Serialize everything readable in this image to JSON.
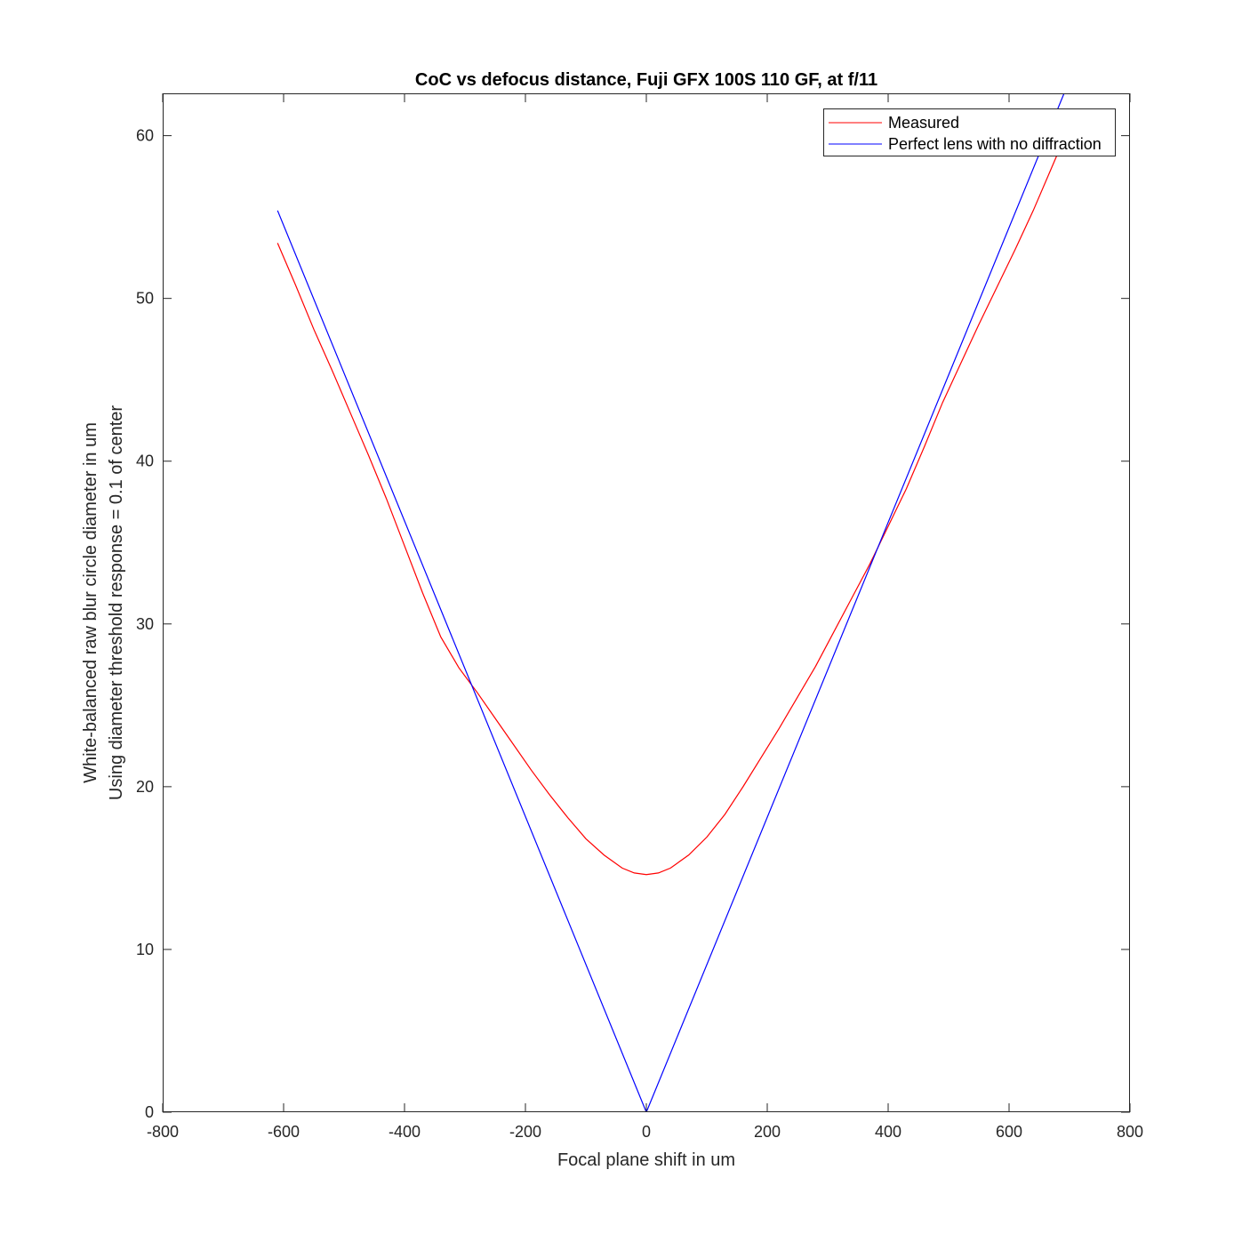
{
  "chart_data": {
    "type": "line",
    "title": "CoC vs defocus distance, Fuji GFX 100S 110 GF, at f/11",
    "xlabel": "Focal plane shift in um",
    "ylabel": [
      "White-balanced raw blur circle diameter in um",
      "Using diameter threshold response = 0.1 of center"
    ],
    "xlim": [
      -800,
      800
    ],
    "ylim": [
      0,
      62.6
    ],
    "xticks": [
      -800,
      -600,
      -400,
      -200,
      0,
      200,
      400,
      600,
      800
    ],
    "yticks": [
      0,
      10,
      20,
      30,
      40,
      50,
      60
    ],
    "grid": false,
    "legend_position": "top-right",
    "series": [
      {
        "name": "Measured",
        "color": "#ff0000",
        "x": [
          -610,
          -580,
          -550,
          -520,
          -490,
          -460,
          -430,
          -400,
          -370,
          -340,
          -310,
          -280,
          -250,
          -220,
          -190,
          -160,
          -130,
          -100,
          -70,
          -40,
          -20,
          0,
          20,
          40,
          70,
          100,
          130,
          160,
          190,
          220,
          250,
          280,
          310,
          340,
          370,
          400,
          430,
          460,
          490,
          520,
          550,
          580,
          610,
          640,
          670,
          700
        ],
        "y": [
          53.4,
          50.8,
          48.1,
          45.6,
          43.0,
          40.4,
          37.7,
          34.8,
          31.9,
          29.2,
          27.3,
          25.8,
          24.2,
          22.6,
          21.0,
          19.5,
          18.1,
          16.8,
          15.8,
          15.0,
          14.7,
          14.6,
          14.7,
          15.0,
          15.8,
          16.9,
          18.3,
          20.0,
          21.8,
          23.6,
          25.5,
          27.4,
          29.5,
          31.6,
          33.7,
          36.0,
          38.3,
          40.9,
          43.6,
          46.0,
          48.4,
          50.7,
          53.0,
          55.4,
          58.0,
          60.6
        ]
      },
      {
        "name": "Perfect lens with no diffraction",
        "color": "#0000ff",
        "x": [
          -610,
          0,
          691
        ],
        "y": [
          55.4,
          0,
          62.6
        ]
      }
    ]
  }
}
